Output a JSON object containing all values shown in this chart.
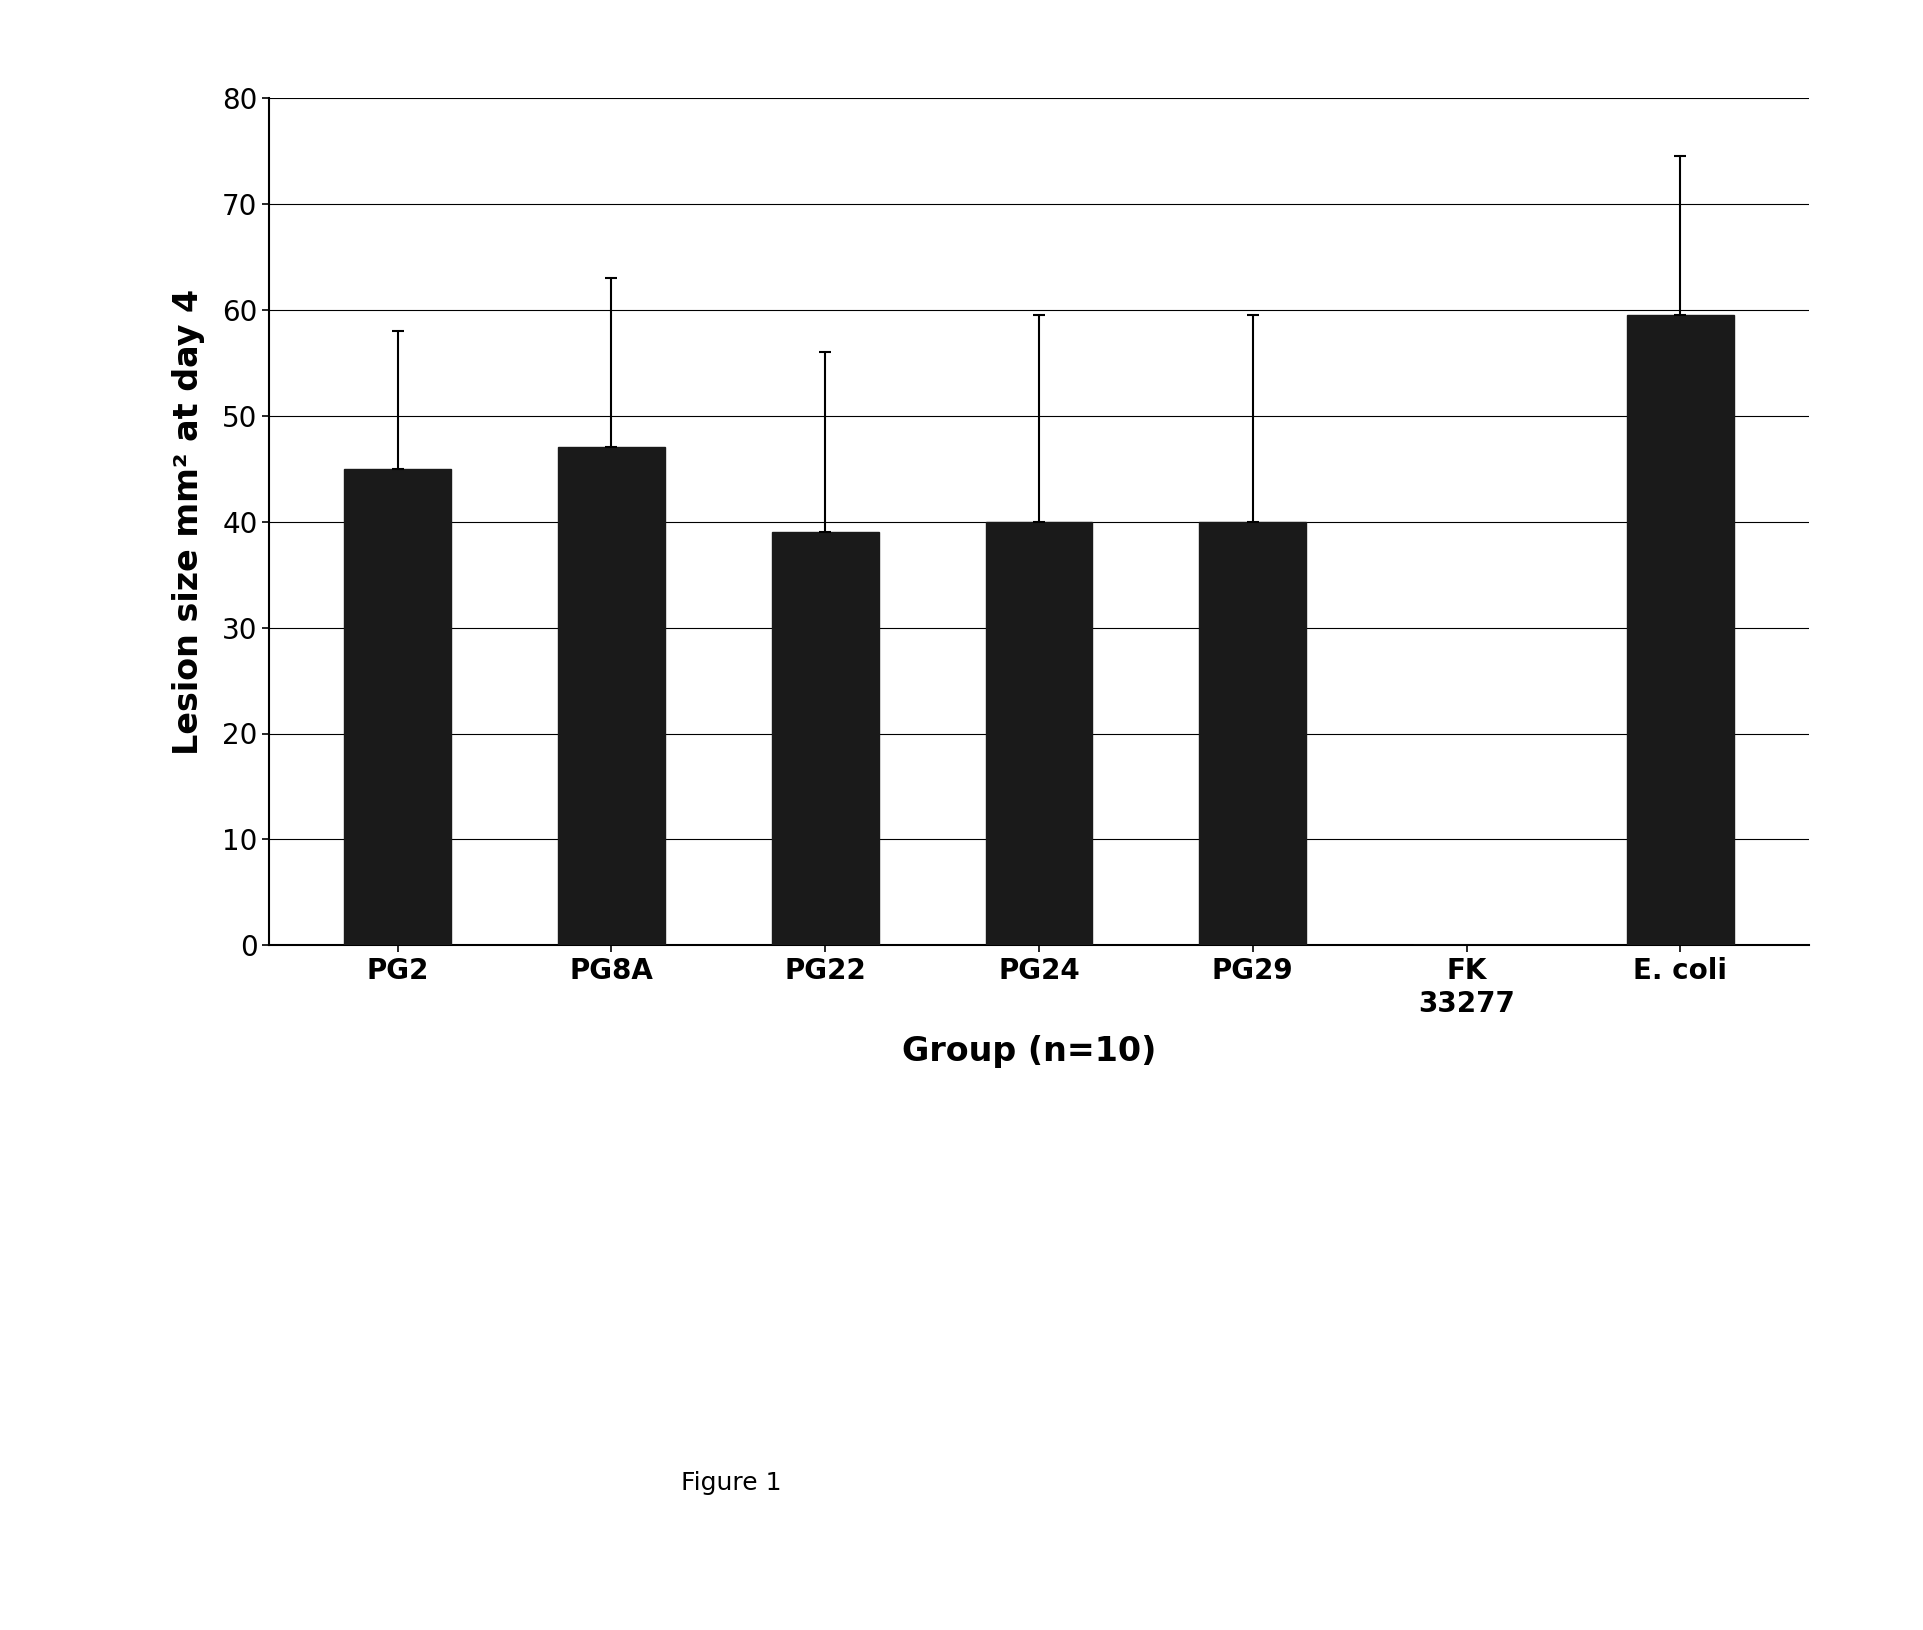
{
  "categories": [
    "PG2",
    "PG8A",
    "PG22",
    "PG24",
    "PG29",
    "FK\n33277",
    "E. coli"
  ],
  "values": [
    45,
    47,
    39,
    40,
    40,
    0,
    59.5
  ],
  "errors_up": [
    13,
    16,
    17,
    19.5,
    19.5,
    0,
    15
  ],
  "errors_down": [
    13,
    16,
    17,
    19.5,
    19.5,
    0,
    15
  ],
  "bar_color": "#1a1a1a",
  "ylabel": "Lesion size mm² at day 4",
  "xlabel": "Group (n=10)",
  "figure_label": "Figure 1",
  "ylim": [
    0,
    80
  ],
  "yticks": [
    0,
    10,
    20,
    30,
    40,
    50,
    60,
    70,
    80
  ],
  "background_color": "#ffffff",
  "bar_width": 0.5,
  "ylabel_fontsize": 24,
  "xlabel_fontsize": 24,
  "tick_fontsize": 20,
  "figure_label_fontsize": 18,
  "capsize": 4,
  "error_linewidth": 1.5
}
